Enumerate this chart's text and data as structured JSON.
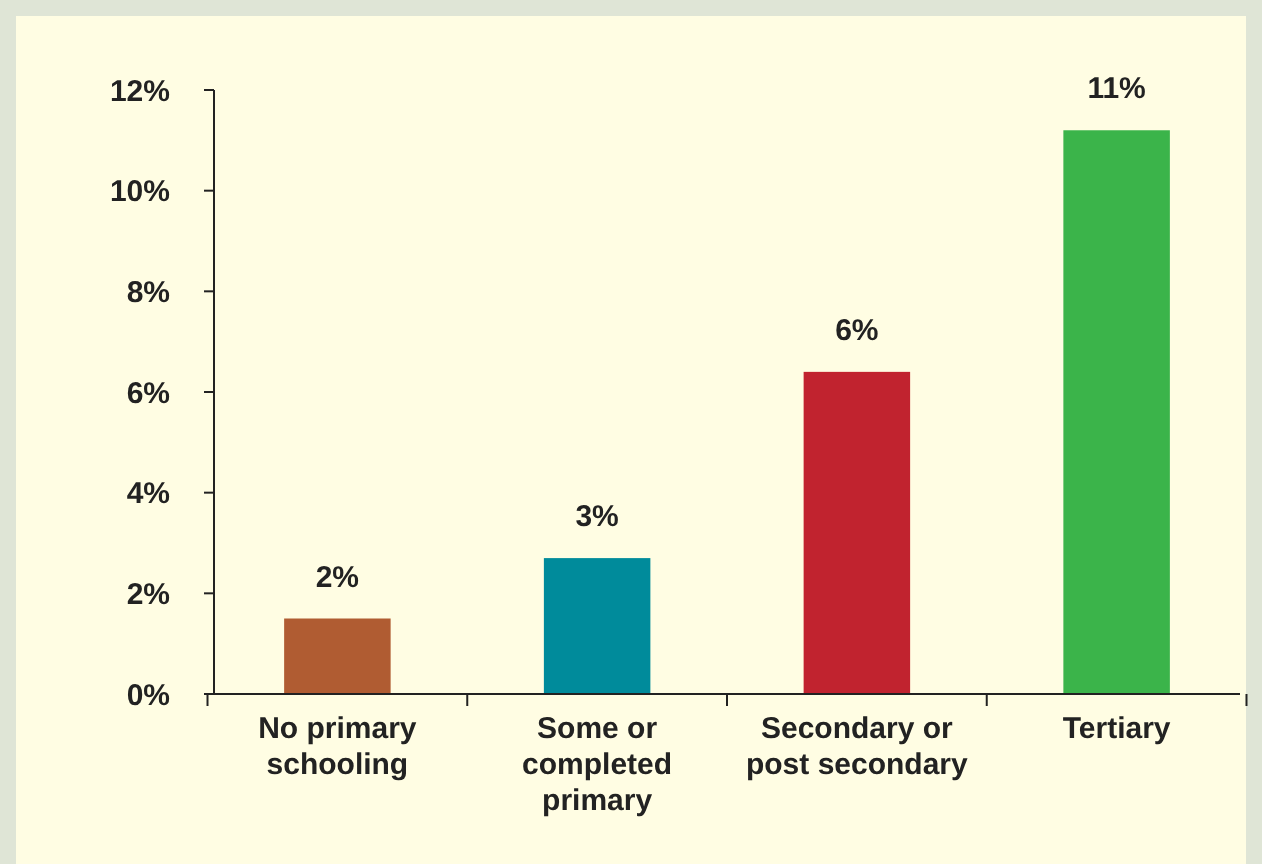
{
  "chart_data": {
    "type": "bar",
    "categories": [
      "No primary schooling",
      "Some or completed primary",
      "Secondary or post secondary",
      "Tertiary"
    ],
    "values": [
      1.5,
      2.7,
      6.4,
      11.2
    ],
    "colors": [
      "#b05c32",
      "#008b9b",
      "#c1232f",
      "#3bb44a"
    ],
    "value_labels": [
      "2%",
      "3%",
      "6%",
      "11%"
    ],
    "ylim": [
      0,
      12
    ],
    "yticks": [
      {
        "value": 0,
        "label": "0%"
      },
      {
        "value": 2,
        "label": "2%"
      },
      {
        "value": 4,
        "label": "4%"
      },
      {
        "value": 6,
        "label": "6%"
      },
      {
        "value": 8,
        "label": "8%"
      },
      {
        "value": 10,
        "label": "10%"
      },
      {
        "value": 12,
        "label": "12%"
      }
    ],
    "tick_labels": "xy"
  }
}
